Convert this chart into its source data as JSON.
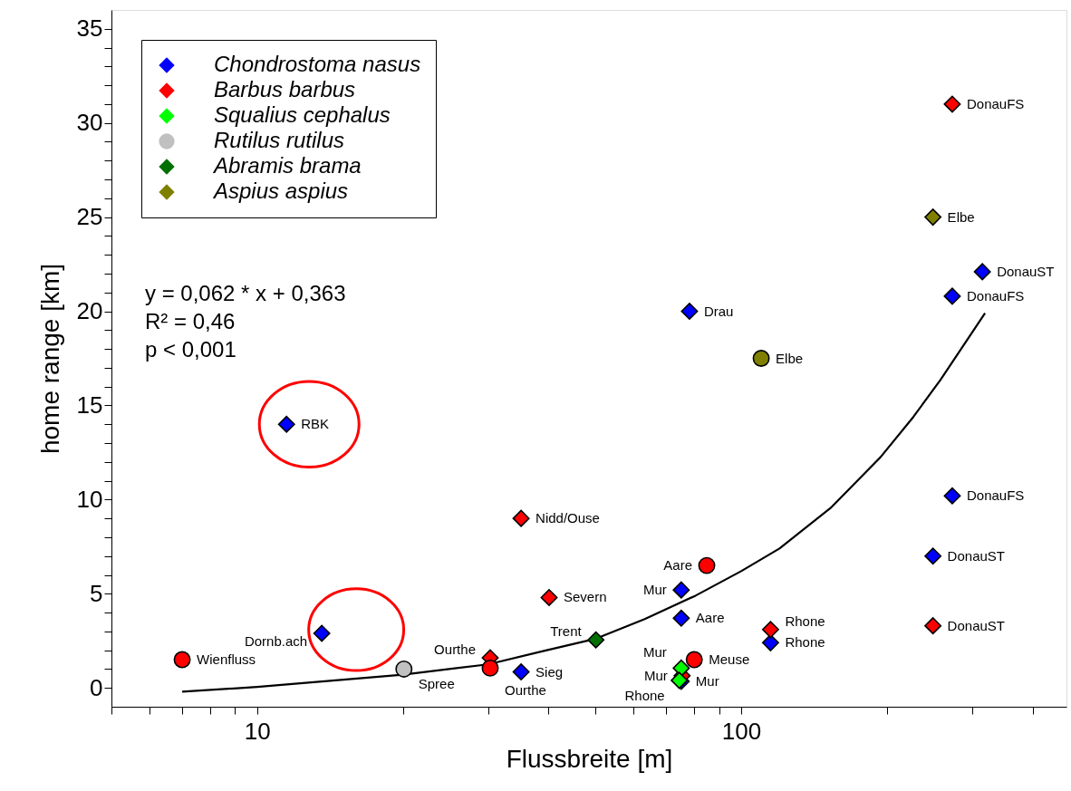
{
  "chart_data": {
    "type": "scatter",
    "xlabel": "Flussbreite [m]",
    "ylabel": "home range [km]",
    "log": "x",
    "grid": false,
    "legend": "top left",
    "xlim": [
      5,
      470
    ],
    "ylim": [
      -1,
      36
    ],
    "xticks": [
      {
        "value": 5,
        "label": null
      },
      {
        "value": 6,
        "label": null
      },
      {
        "value": 7,
        "label": null
      },
      {
        "value": 8,
        "label": null
      },
      {
        "value": 9,
        "label": null
      },
      10,
      {
        "value": 20,
        "label": null
      },
      {
        "value": 30,
        "label": null
      },
      {
        "value": 40,
        "label": null
      },
      {
        "value": 50,
        "label": null
      },
      {
        "value": 60,
        "label": null
      },
      {
        "value": 70,
        "label": null
      },
      {
        "value": 80,
        "label": null
      },
      {
        "value": 90,
        "label": null
      },
      100,
      {
        "value": 200,
        "label": null
      },
      {
        "value": 300,
        "label": null
      },
      {
        "value": 400,
        "label": null
      }
    ],
    "yticks": [
      0,
      {
        "value": 1,
        "label": null
      },
      {
        "value": 2,
        "label": null
      },
      {
        "value": 3,
        "label": null
      },
      {
        "value": 4,
        "label": null
      },
      5,
      {
        "value": 6,
        "label": null
      },
      {
        "value": 7,
        "label": null
      },
      {
        "value": 8,
        "label": null
      },
      {
        "value": 9,
        "label": null
      },
      10,
      {
        "value": 11,
        "label": null
      },
      {
        "value": 12,
        "label": null
      },
      {
        "value": 13,
        "label": null
      },
      {
        "value": 14,
        "label": null
      },
      15,
      {
        "value": 16,
        "label": null
      },
      {
        "value": 17,
        "label": null
      },
      {
        "value": 18,
        "label": null
      },
      {
        "value": 19,
        "label": null
      },
      20,
      {
        "value": 21,
        "label": null
      },
      {
        "value": 22,
        "label": null
      },
      {
        "value": 23,
        "label": null
      },
      {
        "value": 24,
        "label": null
      },
      25,
      {
        "value": 26,
        "label": null
      },
      {
        "value": 27,
        "label": null
      },
      {
        "value": 28,
        "label": null
      },
      {
        "value": 29,
        "label": null
      },
      30,
      {
        "value": 31,
        "label": null
      },
      {
        "value": 32,
        "label": null
      },
      {
        "value": 33,
        "label": null
      },
      {
        "value": 34,
        "label": null
      },
      35
    ],
    "annotations": [
      "y = 0,062 * x + 0,363",
      "R² = 0,46",
      "p < 0,001"
    ],
    "series": [
      {
        "type": "line",
        "color": "#000000",
        "marker": "none",
        "line_style": "solid",
        "x": [
          7,
          10,
          20,
          30,
          39.3,
          49.9,
          63.2,
          80.5,
          100,
          120,
          153,
          194,
          227,
          258,
          319
        ],
        "values": [
          -0.2,
          0.05,
          0.7,
          1.25,
          1.98,
          2.6,
          3.66,
          4.9,
          6.2,
          7.4,
          9.55,
          12.25,
          14.4,
          16.35,
          19.9
        ]
      },
      {
        "name": "Chondrostoma nasus",
        "color": "#0000ff",
        "marker": "diamond",
        "x": [
          11.5,
          13.6,
          35.1,
          78.2,
          75.2,
          75.2,
          115,
          273,
          315,
          273,
          249,
          75.2
        ],
        "values": [
          14,
          2.9,
          0.85,
          20,
          5.2,
          3.7,
          2.4,
          20.8,
          22.1,
          10.2,
          7.0,
          0.35
        ],
        "value_labels": [
          "RBK",
          "Dornb.ach",
          "Sieg",
          "Drau",
          "Mur",
          "Aare",
          "Rhone",
          "DonauFS",
          "DonauST",
          "DonauFS",
          "DonauST",
          "Mur"
        ]
      },
      {
        "name": "Barbus barbus",
        "color": "#ff0000",
        "marker": "diamond",
        "x": [
          35.1,
          40.1,
          30.3,
          115,
          249,
          273,
          75.5
        ],
        "values": [
          9,
          4.8,
          1.6,
          3.1,
          3.3,
          31,
          0.65
        ],
        "value_labels": [
          "Nidd/Ouse",
          "Severn",
          "Ourthe",
          "Rhone",
          "DonauST",
          "DonauFS",
          "Mur"
        ]
      },
      {
        "name": "Squalius cephalus",
        "color": "#00ff00",
        "marker": "diamond",
        "x": [
          75.2,
          74.5
        ],
        "values": [
          1.05,
          0.4
        ],
        "value_labels": [
          "Mur",
          "Rhone"
        ]
      },
      {
        "name": "Rutilus rutilus",
        "color": "#c0c0c0",
        "marker": "circle",
        "x": [
          20.1
        ],
        "values": [
          1.0
        ],
        "value_labels": [
          "Spree"
        ]
      },
      {
        "name": "Abramis brama",
        "color": "#007000",
        "marker": "diamond",
        "x": [
          50.1
        ],
        "values": [
          2.55
        ],
        "value_labels": [
          "Trent"
        ]
      },
      {
        "name": "Aspius aspius",
        "color": "#808000",
        "marker": "diamond",
        "x": [
          249
        ],
        "values": [
          25
        ],
        "value_labels": [
          "Elbe"
        ]
      },
      {
        "color": "#ff0000",
        "marker": "circle",
        "x": [
          7.0,
          30.3,
          84.9,
          80
        ],
        "values": [
          1.5,
          1.05,
          6.5,
          1.5
        ],
        "value_labels": [
          "Wienfluss",
          "Ourthe",
          "Aare",
          "Meuse"
        ]
      },
      {
        "color": "#808000",
        "marker": "circle",
        "x": [
          110
        ],
        "values": [
          17.5
        ],
        "value_labels": [
          "Elbe"
        ]
      }
    ]
  }
}
